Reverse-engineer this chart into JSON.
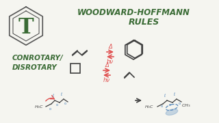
{
  "bg_color": "#f5f5f0",
  "title1": "WOODWARD-HOFFMANN",
  "title2": "RULES",
  "left_text1": "CONROTARY/",
  "left_text2": "DISROTARY",
  "title_color": "#3a6b35",
  "arrow_color": "#e05050",
  "mol_color": "#404040",
  "bottom_color": "#5588bb"
}
